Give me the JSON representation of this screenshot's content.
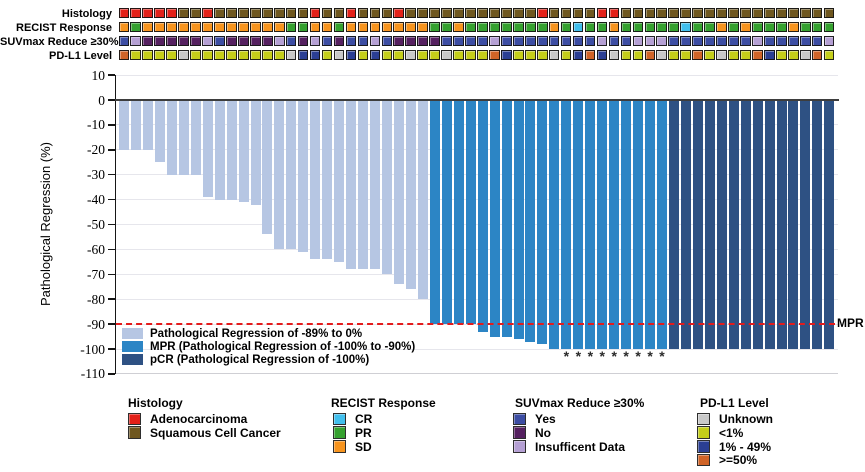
{
  "annotation_tracks": {
    "labels": [
      "Histology",
      "RECIST Response",
      "SUVmax Reduce ≥30%",
      "PD-L1 Level"
    ],
    "histology": [
      "A",
      "A",
      "A",
      "A",
      "A",
      "S",
      "S",
      "A",
      "S",
      "S",
      "S",
      "S",
      "S",
      "S",
      "S",
      "S",
      "A",
      "S",
      "S",
      "A",
      "S",
      "S",
      "S",
      "A",
      "S",
      "S",
      "S",
      "S",
      "S",
      "S",
      "S",
      "S",
      "S",
      "S",
      "S",
      "A",
      "S",
      "S",
      "S",
      "S",
      "A",
      "A",
      "S",
      "S",
      "S",
      "S",
      "S",
      "S",
      "S",
      "S",
      "S",
      "S",
      "S",
      "S",
      "S",
      "S",
      "S",
      "S",
      "S",
      "S"
    ],
    "recist": [
      "SD",
      "PR",
      "SD",
      "SD",
      "SD",
      "SD",
      "SD",
      "SD",
      "SD",
      "SD",
      "SD",
      "SD",
      "SD",
      "SD",
      "PR",
      "PR",
      "SD",
      "SD",
      "PR",
      "SD",
      "SD",
      "SD",
      "SD",
      "SD",
      "SD",
      "SD",
      "PR",
      "PR",
      "SD",
      "PR",
      "PR",
      "PR",
      "PR",
      "PR",
      "PR",
      "PR",
      "SD",
      "PR",
      "CR",
      "PR",
      "PR",
      "SD",
      "PR",
      "PR",
      "PR",
      "PR",
      "PR",
      "CR",
      "PR",
      "PR",
      "SD",
      "PR",
      "SD",
      "PR",
      "PR",
      "PR",
      "SD",
      "PR",
      "PR",
      "PR"
    ],
    "suvmax": [
      "Y",
      "I",
      "N",
      "N",
      "N",
      "N",
      "N",
      "I",
      "Y",
      "N",
      "N",
      "N",
      "N",
      "I",
      "Y",
      "N",
      "I",
      "Y",
      "N",
      "Y",
      "Y",
      "I",
      "Y",
      "N",
      "N",
      "N",
      "N",
      "Y",
      "Y",
      "Y",
      "Y",
      "I",
      "Y",
      "Y",
      "Y",
      "Y",
      "Y",
      "Y",
      "Y",
      "Y",
      "I",
      "Y",
      "Y",
      "I",
      "I",
      "I",
      "Y",
      "Y",
      "Y",
      "Y",
      "Y",
      "Y",
      "Y",
      "I",
      "Y",
      "Y",
      "Y",
      "Y",
      "Y",
      "I"
    ],
    "pdl1": [
      "H",
      "L",
      "L",
      "L",
      "L",
      "U",
      "L",
      "L",
      "L",
      "L",
      "L",
      "L",
      "L",
      "L",
      "U",
      "M",
      "M",
      "L",
      "U",
      "M",
      "L",
      "M",
      "L",
      "L",
      "U",
      "L",
      "L",
      "U",
      "L",
      "L",
      "L",
      "H",
      "M",
      "L",
      "L",
      "L",
      "U",
      "L",
      "M",
      "H",
      "M",
      "U",
      "L",
      "L",
      "H",
      "U",
      "L",
      "L",
      "H",
      "L",
      "U",
      "L",
      "L",
      "H",
      "M",
      "L",
      "L",
      "U",
      "H",
      "L"
    ],
    "colors": {
      "histology": {
        "A": "#e32119",
        "S": "#6f571f"
      },
      "recist": {
        "CR": "#41bfed",
        "PR": "#35a12f",
        "SD": "#f7941e"
      },
      "suvmax": {
        "Y": "#3c4da3",
        "N": "#552060",
        "I": "#b5a0d4"
      },
      "pdl1": {
        "U": "#c8c8c8",
        "L": "#c4ce1a",
        "M": "#2b3f94",
        "H": "#d06428"
      }
    }
  },
  "chart_data": {
    "type": "bar",
    "title": "",
    "xlabel": "",
    "ylabel": "Pathological Regression (%)",
    "ylim": [
      -110,
      10
    ],
    "yticks": [
      10,
      0,
      -10,
      -20,
      -30,
      -40,
      -50,
      -60,
      -70,
      -80,
      -90,
      -100,
      -110
    ],
    "grid": "horizontal, light gray",
    "values": [
      -20,
      -20,
      -20,
      -25,
      -30,
      -30,
      -30,
      -39,
      -40,
      -40,
      -41,
      -42,
      -54,
      -60,
      -60,
      -61,
      -64,
      -64,
      -65,
      -68,
      -68,
      -68,
      -70,
      -74,
      -76,
      -80,
      -90,
      -90,
      -90,
      -90,
      -93,
      -95,
      -95,
      -96,
      -97,
      -98,
      -100,
      -100,
      -100,
      -100,
      -100,
      -100,
      -100,
      -100,
      -100,
      -100,
      -100,
      -100,
      -100,
      -100,
      -100,
      -100,
      -100,
      -100,
      -100,
      -100,
      -100,
      -100,
      -100,
      -100
    ],
    "groups": [
      "light",
      "light",
      "light",
      "light",
      "light",
      "light",
      "light",
      "light",
      "light",
      "light",
      "light",
      "light",
      "light",
      "light",
      "light",
      "light",
      "light",
      "light",
      "light",
      "light",
      "light",
      "light",
      "light",
      "light",
      "light",
      "light",
      "mpr",
      "mpr",
      "mpr",
      "mpr",
      "mpr",
      "mpr",
      "mpr",
      "mpr",
      "mpr",
      "mpr",
      "mpr",
      "mpr",
      "mpr",
      "mpr",
      "mpr",
      "mpr",
      "mpr",
      "mpr",
      "mpr",
      "mpr",
      "pcr",
      "pcr",
      "pcr",
      "pcr",
      "pcr",
      "pcr",
      "pcr",
      "pcr",
      "pcr",
      "pcr",
      "pcr",
      "pcr",
      "pcr",
      "pcr"
    ],
    "asterisk_bars": [
      38,
      39,
      40,
      41,
      42,
      43,
      44,
      45,
      46
    ],
    "asterisk_symbol": "*",
    "bar_colors": {
      "light": "#b6c6e3",
      "mpr": "#2c85c5",
      "pcr": "#2e5183"
    },
    "threshold_line": {
      "y": -90,
      "label": "MPR",
      "color": "#e31b1c",
      "style": "dashed"
    }
  },
  "plot_legend": {
    "items": [
      {
        "label": "Pathological Regression of -89% to 0%",
        "group": "light"
      },
      {
        "label": "MPR (Pathological Regression of -100% to -90%)",
        "group": "mpr"
      },
      {
        "label": "pCR (Pathological Regression of -100%)",
        "group": "pcr"
      }
    ]
  },
  "bottom_legends": [
    {
      "title": "Histology",
      "items": [
        {
          "label": "Adenocarcinoma",
          "color": "#e32119"
        },
        {
          "label": "Squamous Cell Cancer",
          "color": "#6f571f"
        }
      ]
    },
    {
      "title": "RECIST Response",
      "items": [
        {
          "label": "CR",
          "color": "#41bfed"
        },
        {
          "label": "PR",
          "color": "#35a12f"
        },
        {
          "label": "SD",
          "color": "#f7941e"
        }
      ]
    },
    {
      "title": "SUVmax Reduce ≥30%",
      "items": [
        {
          "label": "Yes",
          "color": "#3c4da3"
        },
        {
          "label": "No",
          "color": "#552060"
        },
        {
          "label": "Insufficent Data",
          "color": "#b5a0d4"
        }
      ]
    },
    {
      "title": "PD-L1 Level",
      "items": [
        {
          "label": "Unknown",
          "color": "#c8c8c8"
        },
        {
          "label": "<1%",
          "color": "#c4ce1a"
        },
        {
          "label": "1% - 49%",
          "color": "#2b3f94"
        },
        {
          "label": ">=50%",
          "color": "#d06428"
        }
      ]
    }
  ]
}
